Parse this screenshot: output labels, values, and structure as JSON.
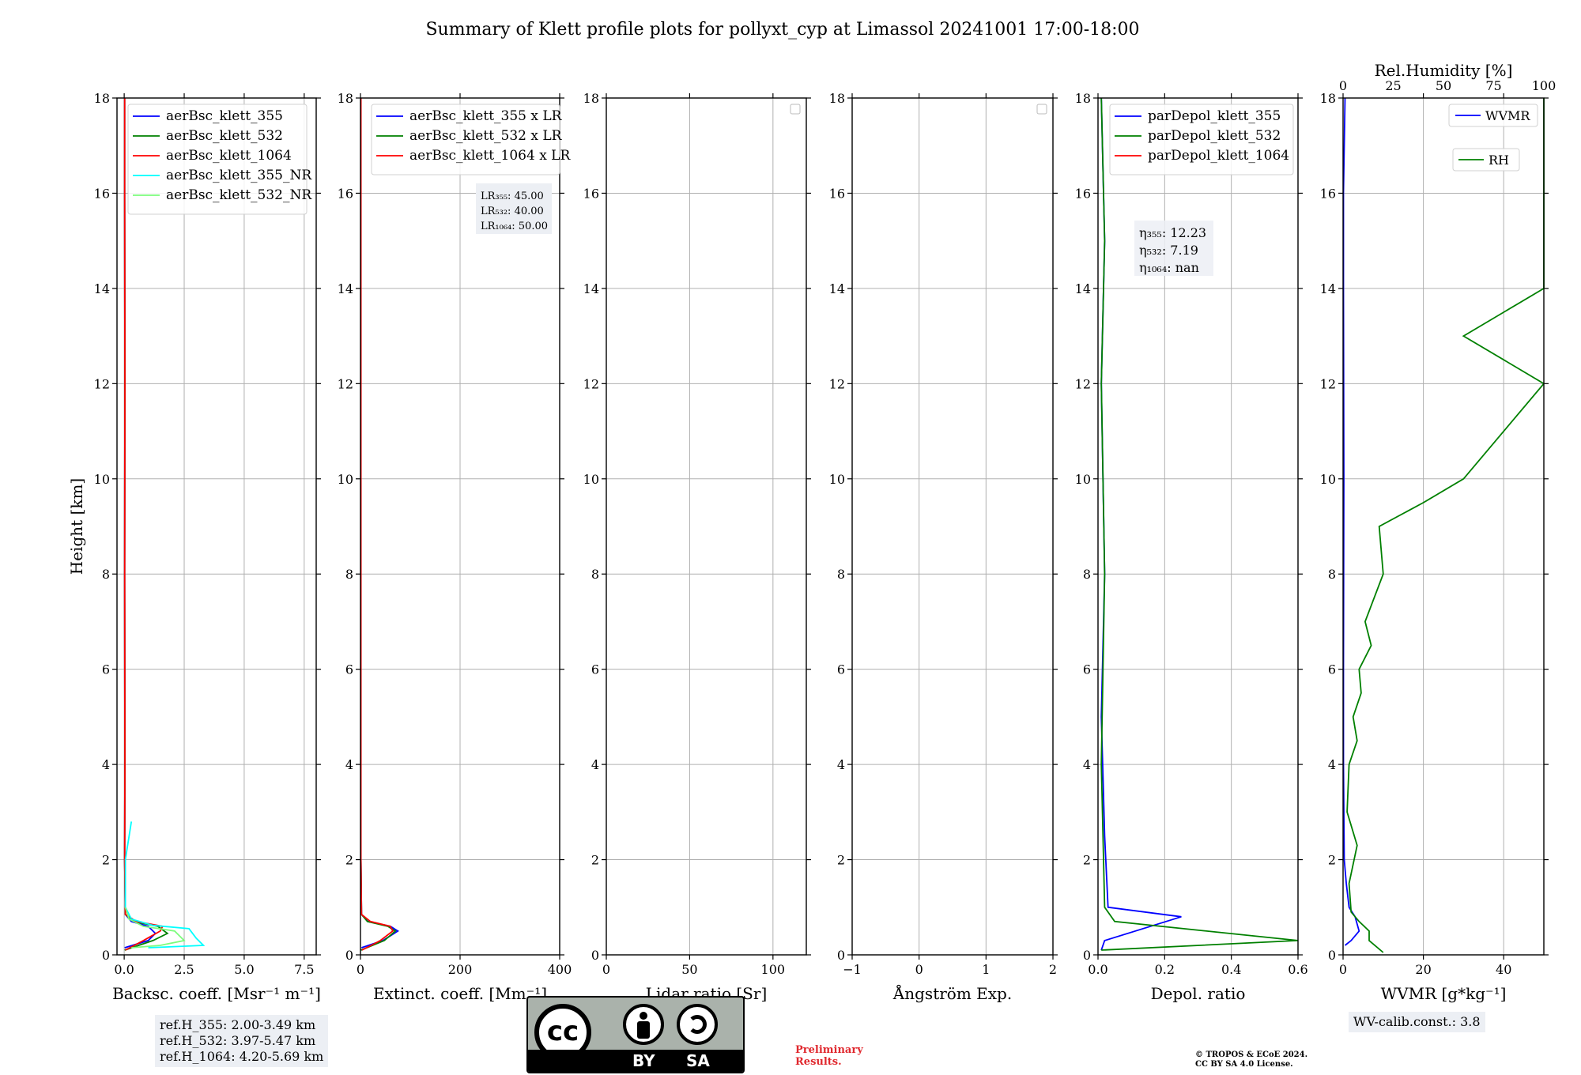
{
  "title": "Summary of Klett profile plots for pollyxt_cyp at Limassol 20241001 17:00-18:00",
  "colors": {
    "b355": "#0000ff",
    "g532": "#008000",
    "r1064": "#ff0000",
    "c355nr": "#00ffff",
    "lg532nr": "#7cfc7c",
    "grid": "#b0b0b0"
  },
  "chart_data": [
    {
      "type": "line",
      "xlabel": "Backsc. coeff. [Msr⁻¹ m⁻¹]",
      "ylabel": "Height [km]",
      "xlim": [
        -0.3,
        8
      ],
      "ylim": [
        0,
        18
      ],
      "xticks": [
        0,
        2.5,
        5,
        7.5
      ],
      "xtick_labels": [
        "0.0",
        "2.5",
        "5.0",
        "7.5"
      ],
      "legend": "top-left",
      "series": [
        {
          "name": "aerBsc_klett_355",
          "color": "#0000ff",
          "x": [
            0.02,
            1.0,
            1.3,
            1.0,
            0.3,
            0.05,
            0.02,
            0.03,
            0.02,
            0.03,
            0.02,
            0.02
          ],
          "y": [
            0.15,
            0.3,
            0.45,
            0.6,
            0.7,
            0.85,
            2,
            4,
            8,
            12,
            16,
            18
          ]
        },
        {
          "name": "aerBsc_klett_532",
          "color": "#008000",
          "x": [
            0.02,
            1.2,
            1.8,
            1.4,
            0.4,
            0.05,
            0.02,
            0.03,
            0.02,
            0.03,
            0.02,
            0.02
          ],
          "y": [
            0.1,
            0.3,
            0.45,
            0.6,
            0.7,
            0.85,
            2,
            4,
            8,
            12,
            16,
            18
          ]
        },
        {
          "name": "aerBsc_klett_1064",
          "color": "#ff0000",
          "x": [
            0.05,
            0.8,
            1.5,
            1.6,
            0.5,
            0.05,
            0.02,
            0.03,
            0.02,
            0.03,
            0.02,
            0.02
          ],
          "y": [
            0.1,
            0.3,
            0.5,
            0.6,
            0.7,
            0.85,
            2,
            4,
            8,
            12,
            16,
            18
          ]
        },
        {
          "name": "aerBsc_klett_355_NR",
          "color": "#00ffff",
          "x": [
            1.0,
            3.3,
            3.0,
            2.7,
            1.2,
            0.3,
            0.05,
            0.05,
            0.3
          ],
          "y": [
            0.15,
            0.2,
            0.35,
            0.55,
            0.62,
            0.75,
            1.0,
            2.0,
            2.8
          ]
        },
        {
          "name": "aerBsc_klett_532_NR",
          "color": "#7cfc7c",
          "x": [
            0.3,
            1.5,
            2.5,
            2.1,
            0.8,
            0.2,
            0.05
          ],
          "y": [
            0.15,
            0.2,
            0.3,
            0.5,
            0.6,
            0.75,
            1.0
          ]
        }
      ]
    },
    {
      "type": "line",
      "xlabel": "Extinct. coeff. [Mm⁻¹]",
      "xlim": [
        0,
        400
      ],
      "ylim": [
        0,
        18
      ],
      "xticks": [
        0,
        200,
        400
      ],
      "xtick_labels": [
        "0",
        "200",
        "400"
      ],
      "legend": "top-left",
      "series": [
        {
          "name": "aerBsc_klett_355 x LR",
          "color": "#0000ff",
          "x": [
            2,
            45,
            75,
            60,
            15,
            2,
            1,
            1,
            1,
            1,
            1
          ],
          "y": [
            0.15,
            0.3,
            0.5,
            0.6,
            0.7,
            0.85,
            2,
            6,
            10,
            14,
            18
          ]
        },
        {
          "name": "aerBsc_klett_532 x LR",
          "color": "#008000",
          "x": [
            1,
            48,
            70,
            55,
            14,
            2,
            1,
            1,
            1,
            1,
            1
          ],
          "y": [
            0.1,
            0.3,
            0.5,
            0.6,
            0.7,
            0.85,
            2,
            6,
            10,
            14,
            18
          ]
        },
        {
          "name": "aerBsc_klett_1064 x LR",
          "color": "#ff0000",
          "x": [
            3,
            40,
            65,
            60,
            20,
            2,
            1,
            1,
            1,
            1,
            1
          ],
          "y": [
            0.1,
            0.3,
            0.5,
            0.6,
            0.7,
            0.85,
            2,
            6,
            10,
            14,
            18
          ]
        }
      ]
    },
    {
      "type": "line",
      "xlabel": "Lidar ratio [Sr]",
      "xlim": [
        0,
        120
      ],
      "ylim": [
        0,
        18
      ],
      "xticks": [
        0,
        50,
        100
      ],
      "xtick_labels": [
        "0",
        "50",
        "100"
      ],
      "legend": "top-right",
      "series": []
    },
    {
      "type": "line",
      "xlabel": "Ångström Exp.",
      "xlim": [
        -1,
        2
      ],
      "ylim": [
        0,
        18
      ],
      "xticks": [
        -1,
        0,
        1,
        2
      ],
      "xtick_labels": [
        "−1",
        "0",
        "1",
        "2"
      ],
      "legend": "top-right",
      "series": []
    },
    {
      "type": "line",
      "xlabel": "Depol. ratio",
      "xlim": [
        0,
        0.6
      ],
      "ylim": [
        0,
        18
      ],
      "xticks": [
        0,
        0.2,
        0.4,
        0.6
      ],
      "xtick_labels": [
        "0.0",
        "0.2",
        "0.4",
        "0.6"
      ],
      "legend": "top-right",
      "series": [
        {
          "name": "parDepol_klett_355",
          "color": "#0000ff",
          "x": [
            0.01,
            0.02,
            0.25,
            0.03,
            0.02,
            0.01,
            0.02,
            0.01,
            0.02,
            0.01
          ],
          "y": [
            0.1,
            0.3,
            0.8,
            1.0,
            2.5,
            5,
            8,
            12,
            15,
            18
          ]
        },
        {
          "name": "parDepol_klett_532",
          "color": "#008000",
          "x": [
            0.01,
            0.6,
            0.05,
            0.02,
            0.01,
            0.02,
            0.01,
            0.02,
            0.01
          ],
          "y": [
            0.1,
            0.3,
            0.7,
            1.0,
            4,
            8,
            12,
            15,
            18
          ]
        },
        {
          "name": "parDepol_klett_1064",
          "color": "#ff0000",
          "x": [],
          "y": []
        }
      ]
    },
    {
      "type": "line",
      "xlabel": "WVMR [g*kg⁻¹]",
      "xlabel2": "Rel.Humidity [%]",
      "xlim": [
        0,
        50
      ],
      "ylim": [
        0,
        18
      ],
      "x2lim": [
        0,
        100
      ],
      "xticks": [
        0,
        20,
        40
      ],
      "xtick_labels": [
        "0",
        "20",
        "40"
      ],
      "x2ticks": [
        0,
        25,
        50,
        75,
        100
      ],
      "x2tick_labels": [
        "0",
        "25",
        "50",
        "75",
        "100"
      ],
      "legend": "top-right",
      "series": [
        {
          "name": "WVMR",
          "color": "#0000ff",
          "x": [
            0.5,
            2,
            4,
            3,
            1.5,
            0.8,
            0.3,
            0.1,
            0.1,
            0.2,
            0.1,
            0.1,
            0.5
          ],
          "y": [
            0.2,
            0.3,
            0.5,
            0.8,
            1.0,
            1.5,
            2,
            4,
            6,
            10,
            14,
            16,
            18
          ]
        },
        {
          "name": "RH",
          "color": "#008000",
          "x": [
            20,
            13,
            13,
            8,
            4,
            3,
            7,
            2,
            3,
            7,
            5,
            9,
            8,
            14,
            11,
            20,
            18,
            40,
            60,
            80,
            100,
            60,
            100,
            100,
            100
          ],
          "y": [
            0.05,
            0.3,
            0.5,
            0.7,
            0.9,
            1.5,
            2.3,
            3,
            4,
            4.5,
            5,
            5.5,
            6,
            6.5,
            7,
            8,
            9,
            9.5,
            10,
            11,
            12,
            13,
            14,
            16,
            18
          ]
        }
      ]
    }
  ],
  "panel_notes": {
    "lr": [
      "LR₃₅₅: 45.00",
      "LR₅₃₂: 40.00",
      "LR₁₀₆₄: 50.00"
    ],
    "eta": [
      "η₃₅₅: 12.23",
      "η₅₃₂: 7.19",
      "η₁₀₆₄: nan"
    ]
  },
  "refs": [
    "ref.H_355: 2.00-3.49 km",
    "ref.H_532: 3.97-5.47 km",
    "ref.H_1064: 4.20-5.69 km"
  ],
  "wv_calib": "WV-calib.const.: 3.8",
  "license_badge": {
    "cc": "cc",
    "by": "BY",
    "sa": "SA"
  },
  "preliminary": [
    "Preliminary",
    "Results."
  ],
  "copyright": [
    "© TROPOS & ECoE 2024.",
    "CC BY SA 4.0 License."
  ],
  "yticks": [
    0,
    2,
    4,
    6,
    8,
    10,
    12,
    14,
    16,
    18
  ]
}
